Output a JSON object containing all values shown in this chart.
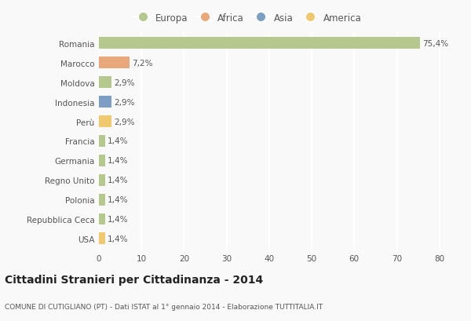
{
  "categories": [
    "Romania",
    "Marocco",
    "Moldova",
    "Indonesia",
    "Perù",
    "Francia",
    "Germania",
    "Regno Unito",
    "Polonia",
    "Repubblica Ceca",
    "USA"
  ],
  "values": [
    75.4,
    7.2,
    2.9,
    2.9,
    2.9,
    1.4,
    1.4,
    1.4,
    1.4,
    1.4,
    1.4
  ],
  "labels": [
    "75,4%",
    "7,2%",
    "2,9%",
    "2,9%",
    "2,9%",
    "1,4%",
    "1,4%",
    "1,4%",
    "1,4%",
    "1,4%",
    "1,4%"
  ],
  "colors": [
    "#b5c98e",
    "#e8a87c",
    "#b5c98e",
    "#7b9ec4",
    "#f0c96e",
    "#b5c98e",
    "#b5c98e",
    "#b5c98e",
    "#b5c98e",
    "#b5c98e",
    "#f0c96e"
  ],
  "legend_labels": [
    "Europa",
    "Africa",
    "Asia",
    "America"
  ],
  "legend_colors": [
    "#b5c98e",
    "#e8a87c",
    "#7b9ec4",
    "#f0c96e"
  ],
  "title": "Cittadini Stranieri per Cittadinanza - 2014",
  "subtitle": "COMUNE DI CUTIGLIANO (PT) - Dati ISTAT al 1° gennaio 2014 - Elaborazione TUTTITALIA.IT",
  "xlim": [
    0,
    83
  ],
  "xticks": [
    0,
    10,
    20,
    30,
    40,
    50,
    60,
    70,
    80
  ],
  "background_color": "#f9f9f9",
  "bar_height": 0.6,
  "grid_color": "#ffffff",
  "label_fontsize": 7.5,
  "tick_fontsize": 7.5,
  "title_fontsize": 10,
  "subtitle_fontsize": 6.5
}
